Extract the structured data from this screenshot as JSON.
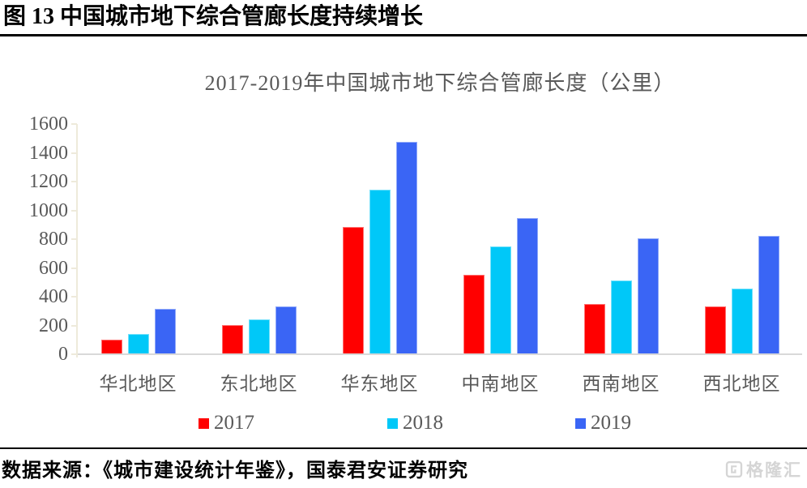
{
  "figure": {
    "title": "图 13  中国城市地下综合管廊长度持续增长"
  },
  "chart_data": {
    "type": "bar",
    "title": "2017-2019年中国城市地下综合管廊长度（公里）",
    "categories": [
      "华北地区",
      "东北地区",
      "华东地区",
      "中南地区",
      "西南地区",
      "西北地区"
    ],
    "series": [
      {
        "name": "2017",
        "color": "#ff0000",
        "values": [
          100,
          200,
          885,
          550,
          350,
          330
        ]
      },
      {
        "name": "2018",
        "color": "#00c8f8",
        "values": [
          140,
          245,
          1145,
          750,
          515,
          455
        ]
      },
      {
        "name": "2019",
        "color": "#3a65f5",
        "values": [
          315,
          330,
          1475,
          945,
          805,
          825
        ]
      }
    ],
    "ylim": [
      0,
      1600
    ],
    "ytick_step": 200,
    "grid": false,
    "legend_position": "bottom",
    "xlabel": "",
    "ylabel": ""
  },
  "footer": {
    "source": "数据来源：《城市建设统计年鉴》，国泰君安证券研究",
    "watermark": "格隆汇"
  },
  "colors": {
    "axis_line": "#eeeadb",
    "baseline": "#d9d9d9",
    "gray_text": "#595959",
    "title_text": "#000000",
    "watermark_gray": "#d5d5d5"
  }
}
